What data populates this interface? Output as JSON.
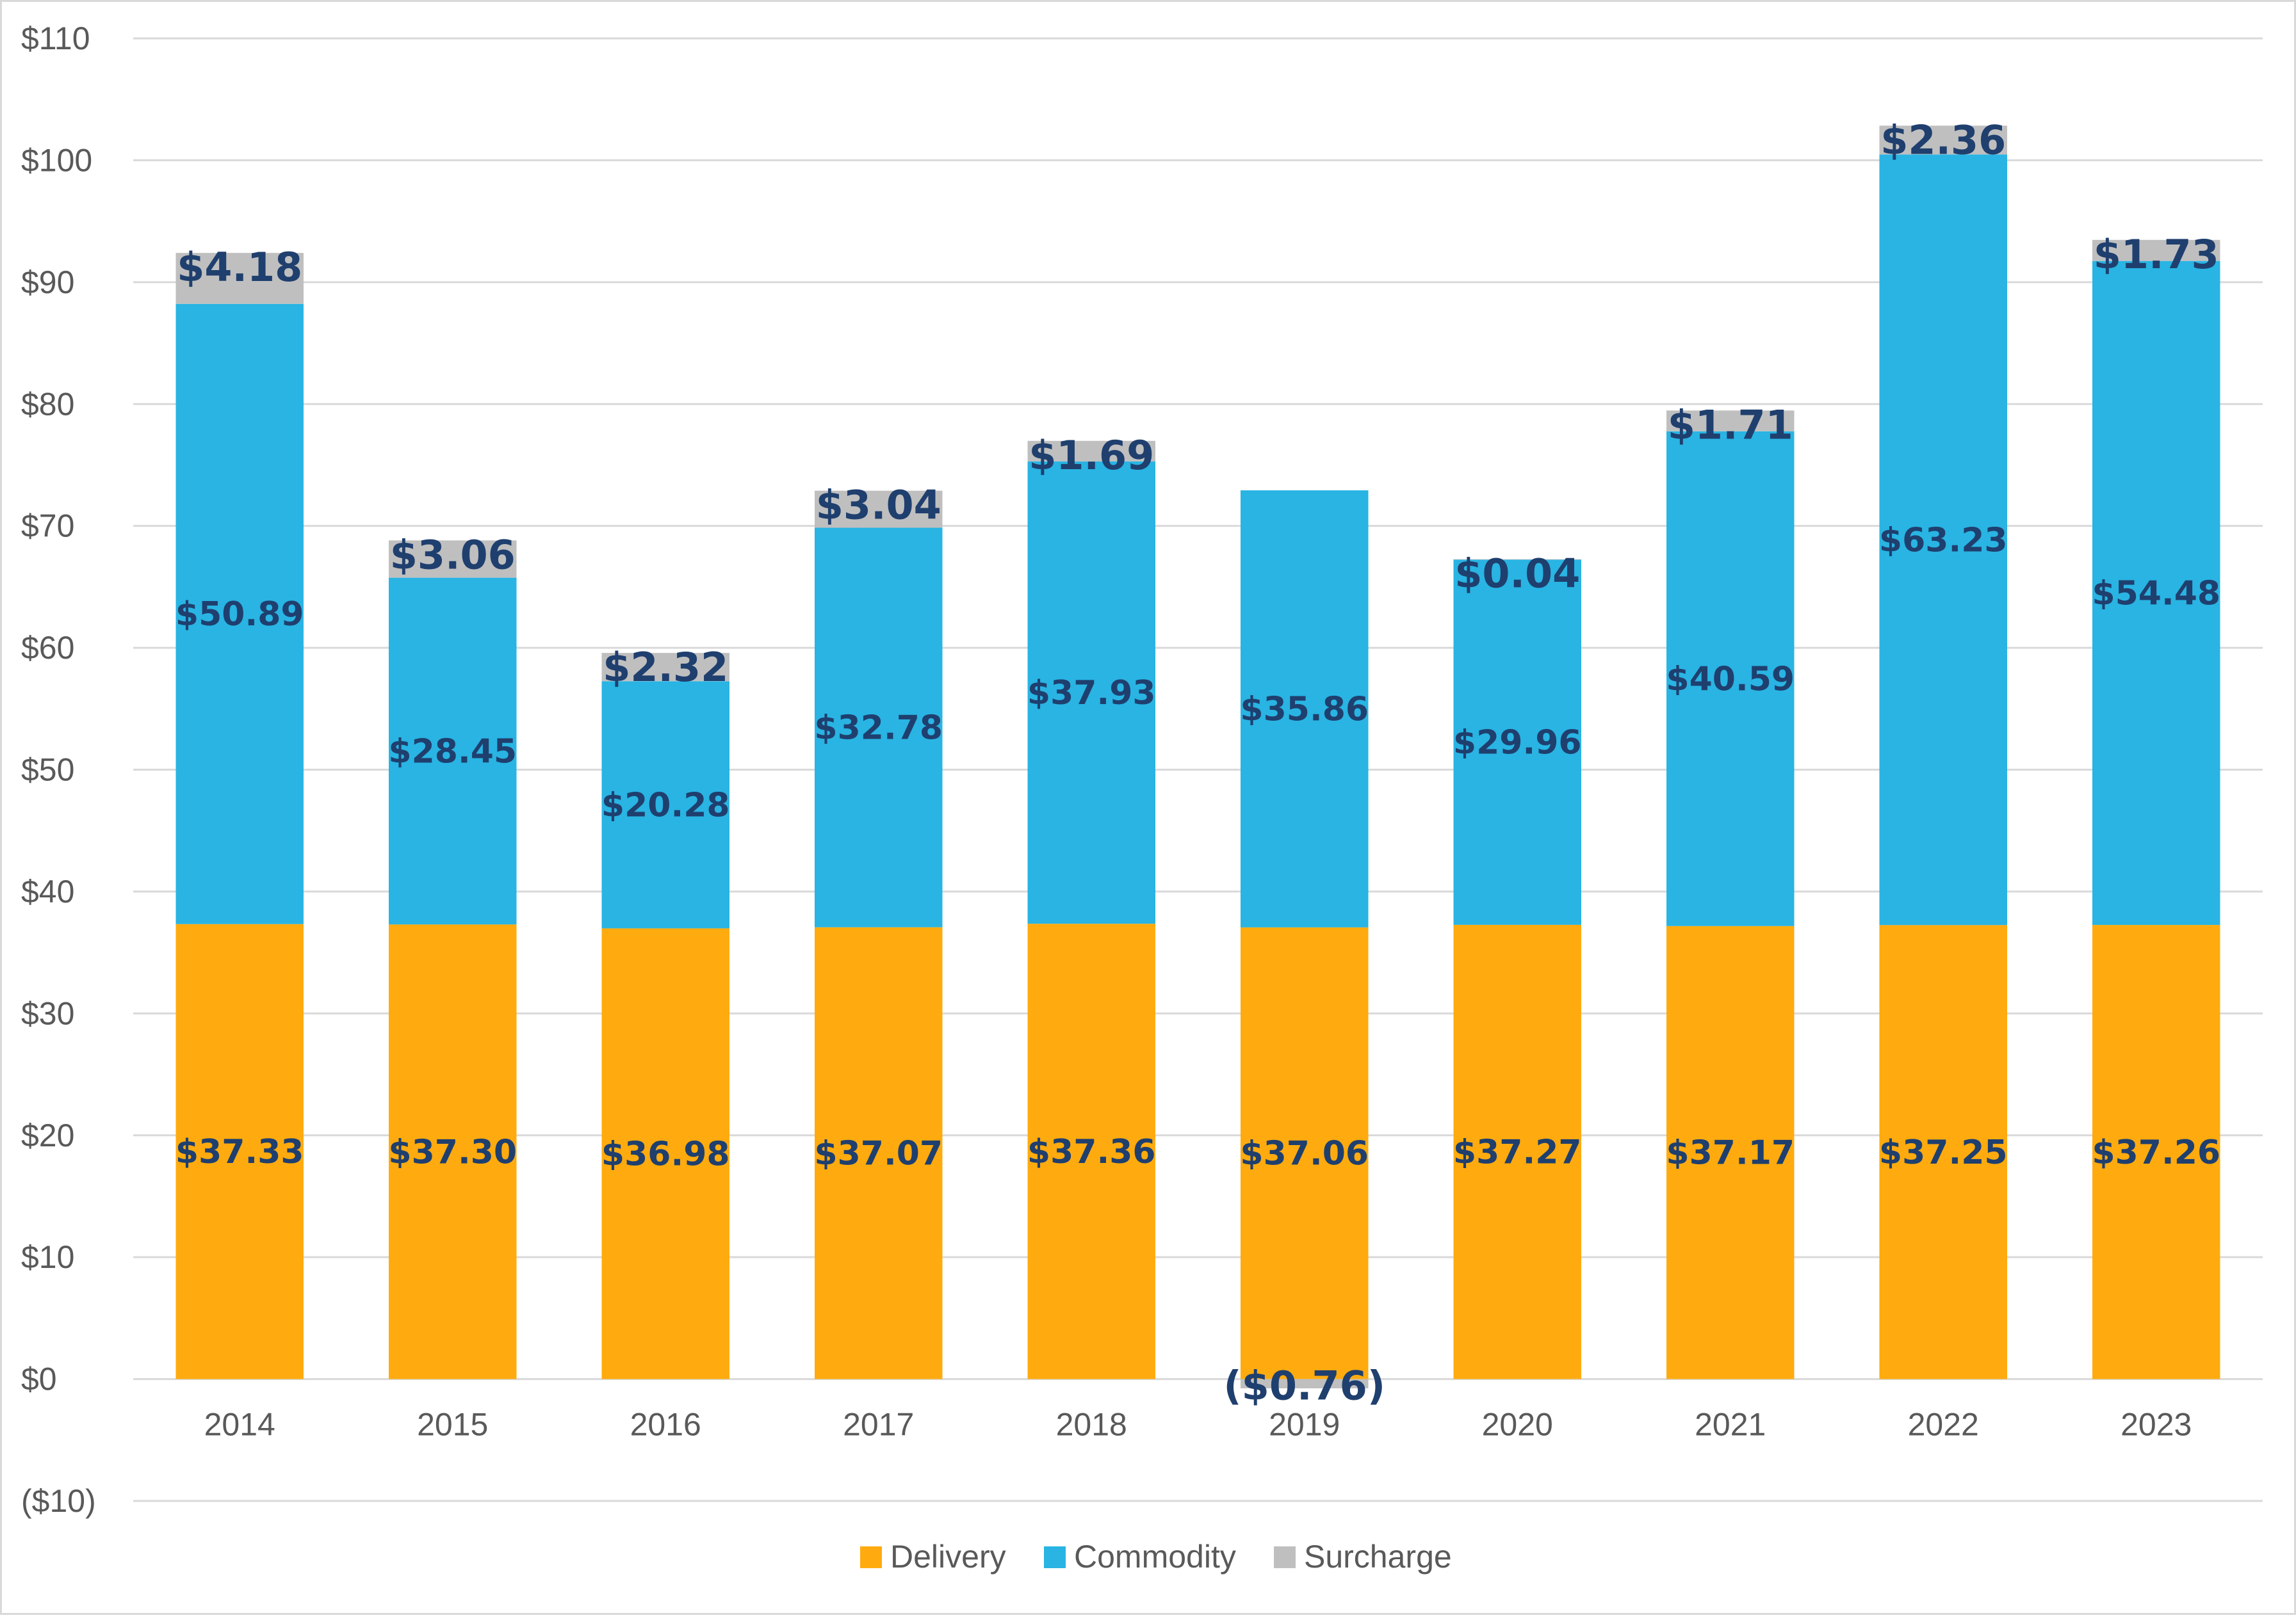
{
  "chart_data": {
    "type": "bar",
    "stacked": true,
    "title": "",
    "xlabel": "",
    "ylabel": "",
    "ylim": [
      -10,
      110
    ],
    "yticks": [
      -10,
      0,
      10,
      20,
      30,
      40,
      50,
      60,
      70,
      80,
      90,
      100,
      110
    ],
    "ytick_labels": [
      "($10)",
      "$0",
      "$10",
      "$20",
      "$30",
      "$40",
      "$50",
      "$60",
      "$70",
      "$80",
      "$90",
      "$100",
      "$110"
    ],
    "categories": [
      "2014",
      "2015",
      "2016",
      "2017",
      "2018",
      "2019",
      "2020",
      "2021",
      "2022",
      "2023"
    ],
    "series": [
      {
        "name": "Delivery",
        "color": "#ffab0f",
        "values": [
          37.33,
          37.3,
          36.98,
          37.07,
          37.36,
          37.06,
          37.27,
          37.17,
          37.25,
          37.26
        ],
        "labels": [
          "$37.33",
          "$37.30",
          "$36.98",
          "$37.07",
          "$37.36",
          "$37.06",
          "$37.27",
          "$37.17",
          "$37.25",
          "$37.26"
        ]
      },
      {
        "name": "Commodity",
        "color": "#29b4e3",
        "values": [
          50.89,
          28.45,
          20.28,
          32.78,
          37.93,
          35.86,
          29.96,
          40.59,
          63.23,
          54.48
        ],
        "labels": [
          "$50.89",
          "$28.45",
          "$20.28",
          "$32.78",
          "$37.93",
          "$35.86",
          "$29.96",
          "$40.59",
          "$63.23",
          "$54.48"
        ]
      },
      {
        "name": "Surcharge",
        "color": "#bfbfbf",
        "values": [
          4.18,
          3.06,
          2.32,
          3.04,
          1.69,
          -0.76,
          0.04,
          1.71,
          2.36,
          1.73
        ],
        "labels": [
          "$4.18",
          "$3.06",
          "$2.32",
          "$3.04",
          "$1.69",
          "($0.76)",
          "$0.04",
          "$1.71",
          "$2.36",
          "$1.73"
        ]
      }
    ],
    "legend": {
      "position": "bottom",
      "entries": [
        "Delivery",
        "Commodity",
        "Surcharge"
      ]
    },
    "grid": true
  }
}
